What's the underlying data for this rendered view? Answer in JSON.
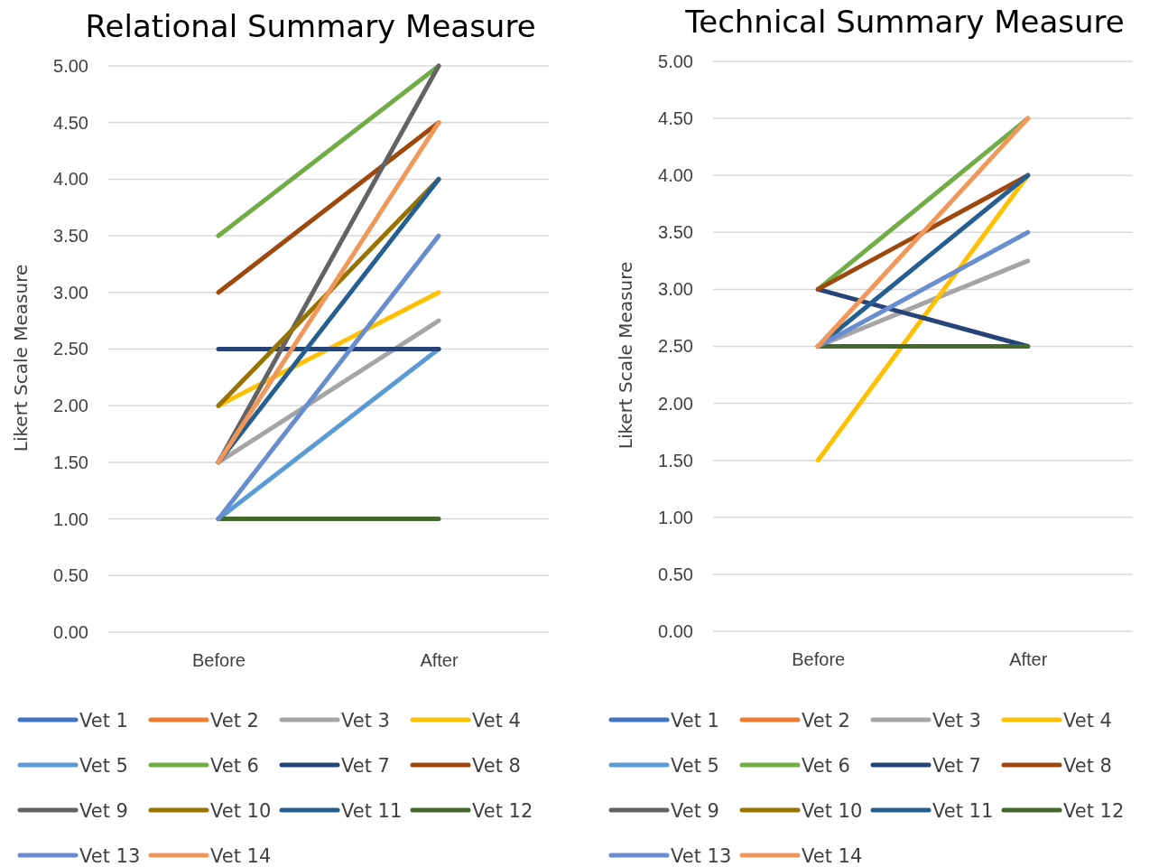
{
  "chart_data": [
    {
      "type": "line",
      "title": "Relational Summary Measure",
      "ylabel": "Likert Scale Measure",
      "categories": [
        "Before",
        "After"
      ],
      "ylim": [
        0,
        5
      ],
      "yticks": [
        {
          "value": 0,
          "label": "0.00"
        },
        {
          "value": 0.5,
          "label": "0.50"
        },
        {
          "value": 1,
          "label": "1.00"
        },
        {
          "value": 1.5,
          "label": "1.50"
        },
        {
          "value": 2,
          "label": "2.00"
        },
        {
          "value": 2.5,
          "label": "2.50"
        },
        {
          "value": 3,
          "label": "3.00"
        },
        {
          "value": 3.5,
          "label": "3.50"
        },
        {
          "value": 4,
          "label": "4.00"
        },
        {
          "value": 4.5,
          "label": "4.50"
        },
        {
          "value": 5,
          "label": "5.00"
        }
      ],
      "grid": "y",
      "legend": "bottom",
      "marker": "none",
      "line_style": "solid",
      "series": [
        {
          "name": "Vet 1",
          "color": "#4472c4",
          "values": [
            null,
            null
          ]
        },
        {
          "name": "Vet 2",
          "color": "#ed7d31",
          "values": [
            null,
            null
          ]
        },
        {
          "name": "Vet 3",
          "color": "#a5a5a5",
          "values": [
            1.5,
            2.75
          ]
        },
        {
          "name": "Vet 4",
          "color": "#ffc000",
          "values": [
            2,
            3
          ]
        },
        {
          "name": "Vet 5",
          "color": "#5b9bd5",
          "values": [
            1,
            2.5
          ]
        },
        {
          "name": "Vet 6",
          "color": "#70ad47",
          "values": [
            3.5,
            5
          ]
        },
        {
          "name": "Vet 7",
          "color": "#264478",
          "values": [
            2.5,
            2.5
          ]
        },
        {
          "name": "Vet 8",
          "color": "#9e480e",
          "values": [
            3,
            4.5
          ]
        },
        {
          "name": "Vet 9",
          "color": "#636363",
          "values": [
            1.5,
            5
          ]
        },
        {
          "name": "Vet 10",
          "color": "#997300",
          "values": [
            2,
            4
          ]
        },
        {
          "name": "Vet 11",
          "color": "#255e91",
          "values": [
            1.5,
            4
          ]
        },
        {
          "name": "Vet 12",
          "color": "#43682b",
          "values": [
            1,
            1
          ]
        },
        {
          "name": "Vet 13",
          "color": "#698ed0",
          "values": [
            1,
            3.5
          ]
        },
        {
          "name": "Vet 14",
          "color": "#f1975a",
          "values": [
            1.5,
            4.5
          ]
        }
      ]
    },
    {
      "type": "line",
      "title": "Technical Summary Measure",
      "ylabel": "Likert Scale Measure",
      "categories": [
        "Before",
        "After"
      ],
      "ylim": [
        0,
        5
      ],
      "yticks": [
        {
          "value": 0,
          "label": "0.00"
        },
        {
          "value": 0.5,
          "label": "0.50"
        },
        {
          "value": 1,
          "label": "1.00"
        },
        {
          "value": 1.5,
          "label": "1.50"
        },
        {
          "value": 2,
          "label": "2.00"
        },
        {
          "value": 2.5,
          "label": "2.50"
        },
        {
          "value": 3,
          "label": "3.00"
        },
        {
          "value": 3.5,
          "label": "3.50"
        },
        {
          "value": 4,
          "label": "4.00"
        },
        {
          "value": 4.5,
          "label": "4.50"
        },
        {
          "value": 5,
          "label": "5.00"
        }
      ],
      "grid": "y",
      "legend": "bottom",
      "marker": "none",
      "line_style": "solid",
      "series": [
        {
          "name": "Vet 1",
          "color": "#4472c4",
          "values": [
            null,
            null
          ]
        },
        {
          "name": "Vet 2",
          "color": "#ed7d31",
          "values": [
            null,
            null
          ]
        },
        {
          "name": "Vet 3",
          "color": "#a5a5a5",
          "values": [
            2.5,
            3.25
          ]
        },
        {
          "name": "Vet 4",
          "color": "#ffc000",
          "values": [
            1.5,
            4
          ]
        },
        {
          "name": "Vet 5",
          "color": "#5b9bd5",
          "values": [
            null,
            null
          ]
        },
        {
          "name": "Vet 6",
          "color": "#70ad47",
          "values": [
            3,
            4.5
          ]
        },
        {
          "name": "Vet 7",
          "color": "#264478",
          "values": [
            3,
            2.5
          ]
        },
        {
          "name": "Vet 8",
          "color": "#9e480e",
          "values": [
            3,
            4
          ]
        },
        {
          "name": "Vet 9",
          "color": "#636363",
          "values": [
            null,
            null
          ]
        },
        {
          "name": "Vet 10",
          "color": "#997300",
          "values": [
            null,
            null
          ]
        },
        {
          "name": "Vet 11",
          "color": "#255e91",
          "values": [
            2.5,
            4
          ]
        },
        {
          "name": "Vet 12",
          "color": "#43682b",
          "values": [
            2.5,
            2.5
          ]
        },
        {
          "name": "Vet 13",
          "color": "#698ed0",
          "values": [
            2.5,
            3.5
          ]
        },
        {
          "name": "Vet 14",
          "color": "#f1975a",
          "values": [
            2.5,
            4.5
          ]
        }
      ]
    }
  ]
}
